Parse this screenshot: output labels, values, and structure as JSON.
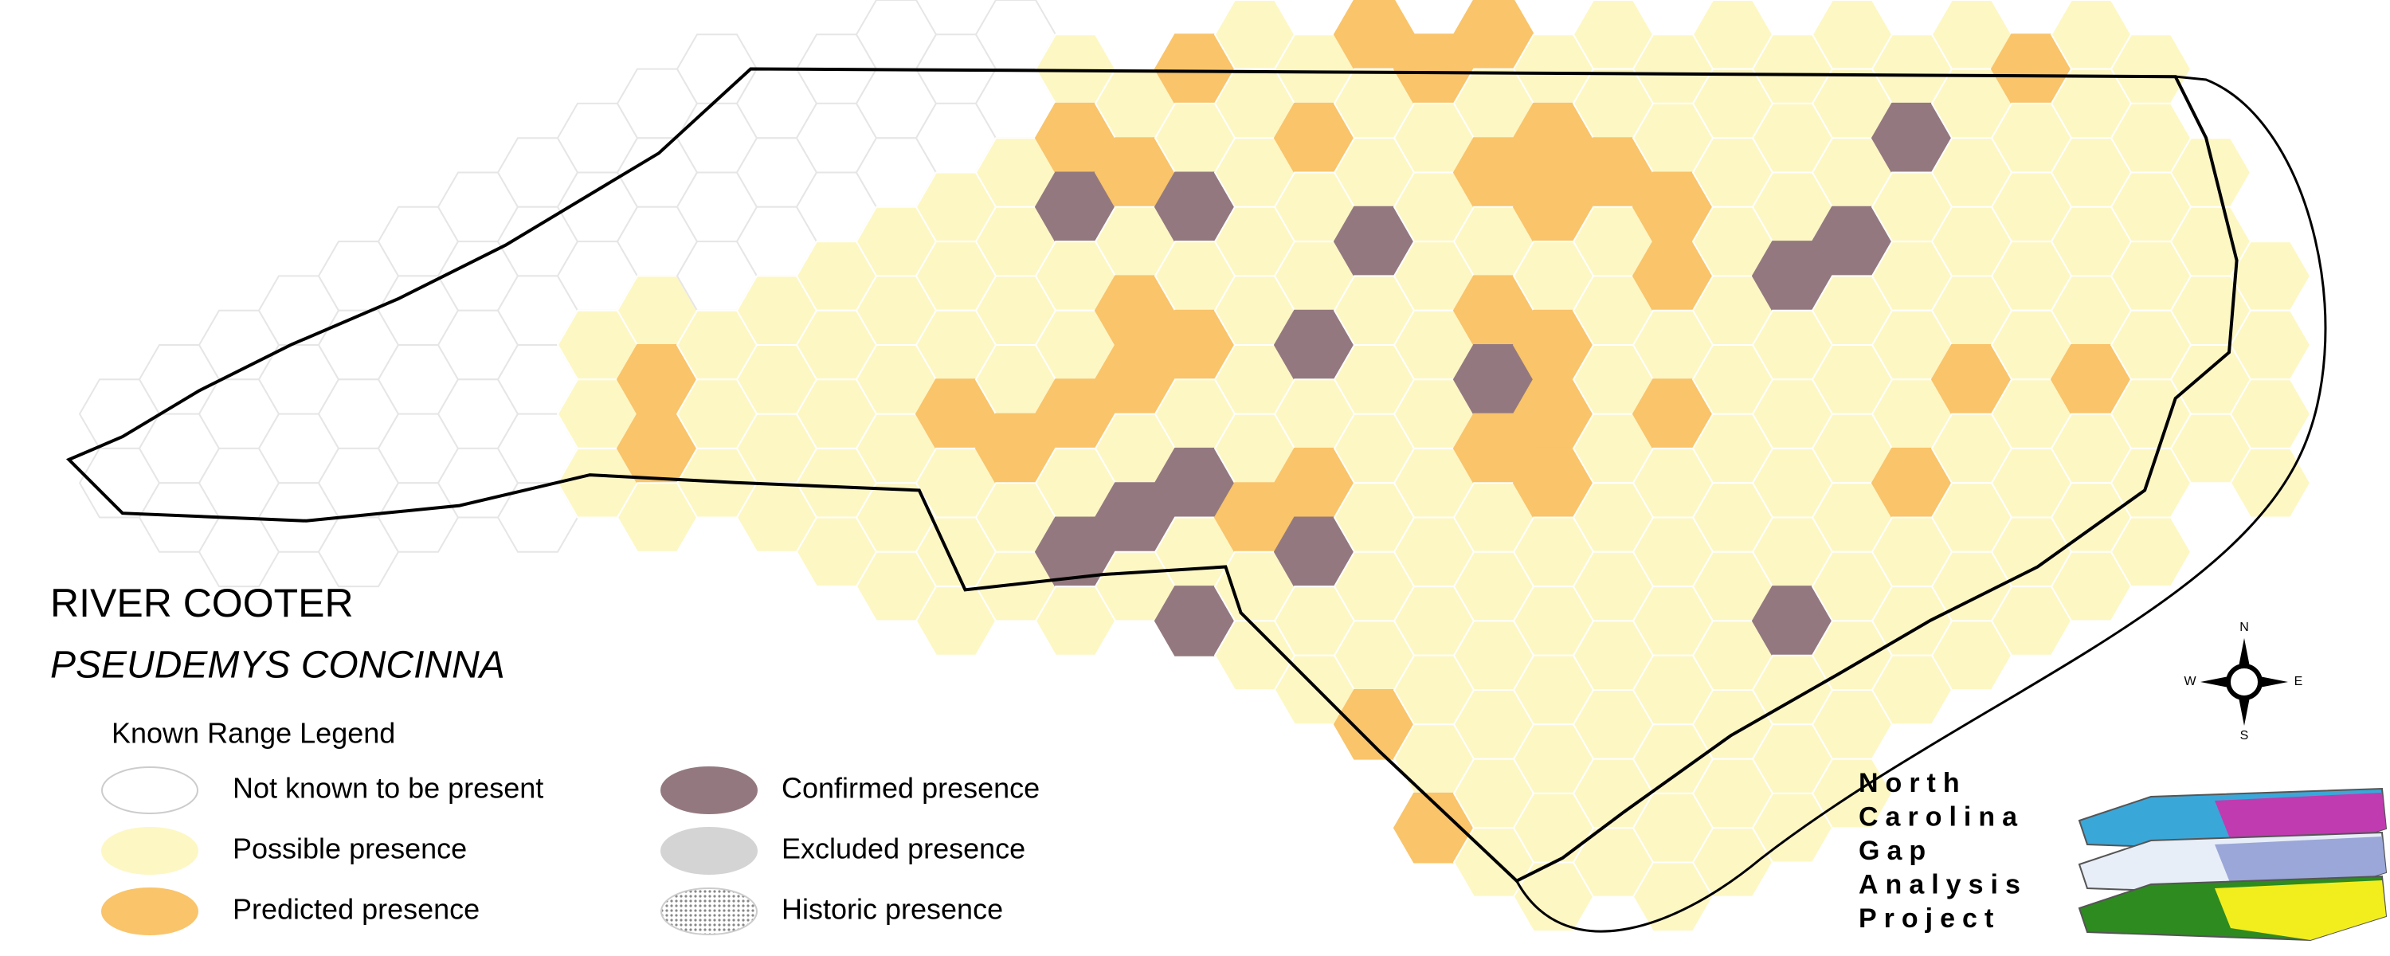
{
  "title": "RIVER COOTER",
  "subtitle": "PSEUDEMYS CONCINNA",
  "legend": {
    "title": "Known Range Legend",
    "items": [
      {
        "label": "Not known to be present"
      },
      {
        "label": "Possible presence"
      },
      {
        "label": "Predicted presence"
      },
      {
        "label": "Confirmed presence"
      },
      {
        "label": "Excluded presence"
      },
      {
        "label": "Historic presence"
      }
    ]
  },
  "compass": {
    "n": "N",
    "w": "W",
    "e": "E",
    "s": "S"
  },
  "logo": {
    "lines": [
      "North",
      "Carolina",
      "Gap",
      "Analysis",
      "Project"
    ]
  }
}
